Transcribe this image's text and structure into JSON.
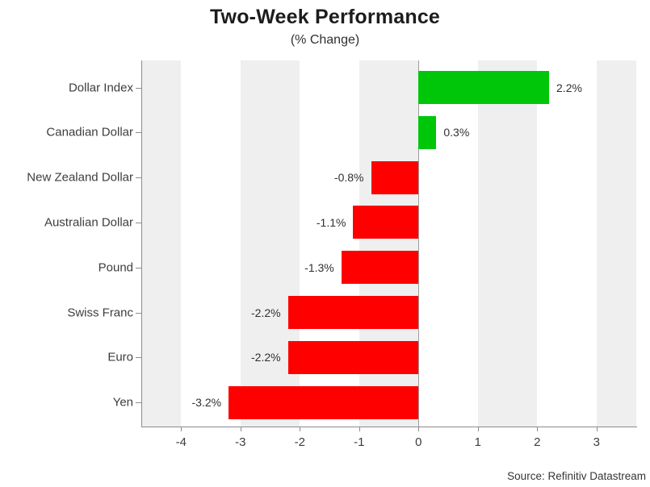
{
  "title": "Two-Week Performance",
  "subtitle": "(% Change)",
  "source": "Source: Refinitiv Datastream",
  "colors": {
    "positive": "#00c60a",
    "negative": "#fe0000",
    "stripe": "#efefef",
    "axis": "#8c8c8c",
    "text": "#3d3d3d"
  },
  "chart_data": {
    "type": "bar",
    "orientation": "horizontal",
    "title": "Two-Week Performance",
    "subtitle": "(% Change)",
    "categories": [
      "Dollar Index",
      "Canadian Dollar",
      "New Zealand Dollar",
      "Australian Dollar",
      "Pound",
      "Swiss Franc",
      "Euro",
      "Yen"
    ],
    "values": [
      2.2,
      0.3,
      -0.8,
      -1.1,
      -1.3,
      -2.2,
      -2.2,
      -3.2
    ],
    "labels": [
      "2.2%",
      "0.3%",
      "-0.8%",
      "-1.1%",
      "-1.3%",
      "-2.2%",
      "-2.2%",
      "-3.2%"
    ],
    "x_ticks": [
      -4,
      -3,
      -2,
      -1,
      0,
      1,
      2,
      3
    ],
    "xlim": [
      -4.657,
      3.669
    ],
    "xlabel": "",
    "ylabel": "",
    "legend": "none",
    "grid": "alternating vertical gray bands on odd-to-even unit intervals",
    "source": "Source: Refinitiv Datastream"
  }
}
